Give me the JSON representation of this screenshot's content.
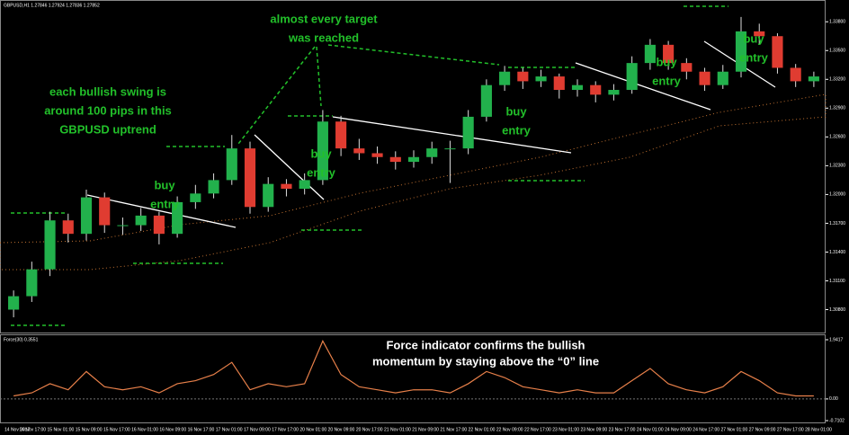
{
  "chart_data": [
    {
      "type": "candlestick",
      "label": "GBPUSD,H1 1.27846 1.27924 1.27836 1.27852",
      "open": [
        1.308,
        1.3094,
        1.3122,
        1.3173,
        1.3159,
        1.3197,
        1.3168,
        1.3168,
        1.3178,
        1.3159,
        1.3192,
        1.3201,
        1.3215,
        1.3248,
        1.3187,
        1.3211,
        1.3206,
        1.3215,
        1.3276,
        1.3248,
        1.3243,
        1.3239,
        1.3234,
        1.3239,
        1.3248,
        1.3248,
        1.3281,
        1.3314,
        1.3328,
        1.3318,
        1.3323,
        1.3309,
        1.3314,
        1.3304,
        1.3309,
        1.3337,
        1.3356,
        1.3337,
        1.3328,
        1.3314,
        1.3328,
        1.337,
        1.3365,
        1.3332,
        1.3318
      ],
      "high": [
        1.31,
        1.313,
        1.3182,
        1.318,
        1.3205,
        1.3202,
        1.3176,
        1.3186,
        1.3182,
        1.3198,
        1.321,
        1.3222,
        1.3262,
        1.3255,
        1.3218,
        1.3216,
        1.3222,
        1.3288,
        1.3282,
        1.3258,
        1.325,
        1.3245,
        1.3246,
        1.3255,
        1.3256,
        1.3288,
        1.332,
        1.3334,
        1.3332,
        1.333,
        1.3326,
        1.332,
        1.3318,
        1.3315,
        1.3344,
        1.3362,
        1.336,
        1.3342,
        1.3332,
        1.3335,
        1.3385,
        1.3378,
        1.3368,
        1.3336,
        1.3328
      ],
      "low": [
        1.3072,
        1.3088,
        1.3115,
        1.315,
        1.3152,
        1.316,
        1.3158,
        1.3162,
        1.3148,
        1.3155,
        1.3185,
        1.3196,
        1.321,
        1.318,
        1.3182,
        1.3198,
        1.32,
        1.321,
        1.324,
        1.3236,
        1.3232,
        1.3226,
        1.3228,
        1.3232,
        1.3212,
        1.3242,
        1.3276,
        1.3308,
        1.331,
        1.3312,
        1.33,
        1.3302,
        1.3296,
        1.3298,
        1.3305,
        1.333,
        1.333,
        1.332,
        1.3308,
        1.331,
        1.3322,
        1.3356,
        1.3326,
        1.3312,
        1.3312
      ],
      "close": [
        1.3094,
        1.3122,
        1.3173,
        1.3159,
        1.3197,
        1.3168,
        1.3168,
        1.3178,
        1.3159,
        1.3192,
        1.3201,
        1.3215,
        1.3248,
        1.3187,
        1.3211,
        1.3206,
        1.3215,
        1.3276,
        1.3248,
        1.3243,
        1.3239,
        1.3234,
        1.3239,
        1.3248,
        1.3248,
        1.3281,
        1.3314,
        1.3328,
        1.3318,
        1.3323,
        1.3309,
        1.3314,
        1.3304,
        1.3309,
        1.3337,
        1.3356,
        1.3337,
        1.3328,
        1.3314,
        1.3328,
        1.337,
        1.3365,
        1.3332,
        1.3318,
        1.3323
      ],
      "up_color": "#22b14c",
      "down_color": "#e03c31",
      "ylim": [
        1.3058,
        1.3398
      ],
      "yticks": [
        {
          "value": 1.308,
          "label": "1.30800"
        },
        {
          "value": 1.311,
          "label": "1.31100"
        },
        {
          "value": 1.314,
          "label": "1.31400"
        },
        {
          "value": 1.317,
          "label": "1.31700"
        },
        {
          "value": 1.32,
          "label": "1.32000"
        },
        {
          "value": 1.323,
          "label": "1.32300"
        },
        {
          "value": 1.326,
          "label": "1.32600"
        },
        {
          "value": 1.329,
          "label": "1.32900"
        },
        {
          "value": 1.332,
          "label": "1.33200"
        },
        {
          "value": 1.335,
          "label": "1.33500"
        },
        {
          "value": 1.338,
          "label": "1.33800"
        }
      ],
      "x_labels": [
        "14 Nov 2017",
        "14 Nov 17:00",
        "15 Nov 01:00",
        "15 Nov 09:00",
        "15 Nov 17:00",
        "16 Nov 01:00",
        "16 Nov 09:00",
        "16 Nov 17:00",
        "17 Nov 01:00",
        "17 Nov 09:00",
        "17 Nov 17:00",
        "20 Nov 01:00",
        "20 Nov 09:00",
        "20 Nov 17:00",
        "21 Nov 01:00",
        "21 Nov 09:00",
        "21 Nov 17:00",
        "22 Nov 01:00",
        "22 Nov 09:00",
        "22 Nov 17:00",
        "23 Nov 01:00",
        "23 Nov 09:00",
        "23 Nov 17:00",
        "24 Nov 01:00",
        "24 Nov 09:00",
        "24 Nov 17:00",
        "27 Nov 01:00",
        "27 Nov 09:00",
        "27 Nov 17:00",
        "28 Nov 01:00"
      ],
      "annotations": [
        {
          "lines": [
            "almost every target",
            "was reached"
          ]
        },
        {
          "lines": [
            "each bullish swing is",
            "around 100 pips in this",
            "GBPUSD uptrend"
          ]
        },
        {
          "lines": [
            "buy",
            "entry"
          ]
        },
        {
          "lines": [
            "buy",
            "entry"
          ]
        },
        {
          "lines": [
            "buy",
            "entry"
          ]
        },
        {
          "lines": [
            "buy",
            "entry"
          ]
        },
        {
          "lines": [
            "buy",
            "entry"
          ]
        }
      ]
    },
    {
      "type": "line",
      "label": "Force(30) 0.3551",
      "color": "#e8804a",
      "values": [
        0.1,
        0.2,
        0.5,
        0.3,
        0.9,
        0.4,
        0.3,
        0.4,
        0.2,
        0.5,
        0.6,
        0.8,
        1.2,
        0.3,
        0.5,
        0.4,
        0.5,
        1.9,
        0.8,
        0.4,
        0.3,
        0.2,
        0.3,
        0.3,
        0.2,
        0.5,
        0.9,
        0.7,
        0.4,
        0.3,
        0.2,
        0.3,
        0.2,
        0.2,
        0.6,
        1.0,
        0.5,
        0.3,
        0.2,
        0.4,
        0.9,
        0.6,
        0.2,
        0.1,
        0.1
      ],
      "ylim": [
        -0.7102,
        1.9417
      ],
      "yticks": [
        1.9417,
        {
          "value": 0,
          "label": "0.00"
        },
        -0.7102
      ],
      "annotation": {
        "lines": [
          "Force indicator confirms the bullish",
          "momentum by staying above the “0” line"
        ]
      }
    }
  ]
}
